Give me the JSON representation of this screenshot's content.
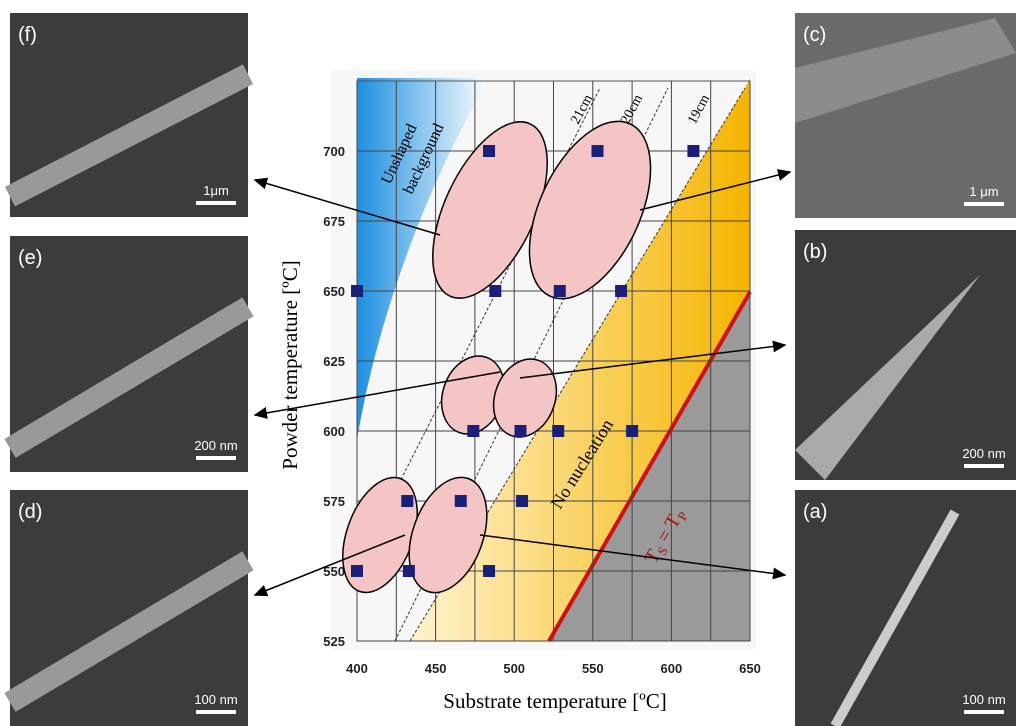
{
  "chart_data": {
    "type": "scatter",
    "x_label": "Substrate temperature [ºC]",
    "y_label": "Powder temperature [ºC]",
    "xlim": [
      400,
      650
    ],
    "ylim": [
      525,
      725
    ],
    "xticks": [
      400,
      450,
      500,
      550,
      600,
      650
    ],
    "xgrid_minor": [
      425,
      475,
      525,
      575,
      625
    ],
    "yticks": [
      525,
      550,
      575,
      600,
      625,
      650,
      675,
      700
    ],
    "grid": true,
    "x": [
      400,
      484,
      553,
      614,
      488,
      529,
      568,
      474,
      504,
      528,
      575,
      432,
      466,
      505,
      400,
      433,
      484
    ],
    "values": [
      650,
      700,
      700,
      700,
      650,
      650,
      650,
      600,
      600,
      600,
      600,
      575,
      575,
      575,
      550,
      550,
      550
    ],
    "color": "#1c1f78",
    "annotations": {
      "unshaped": [
        "Unshaped",
        "background"
      ],
      "no_nucleation": "No nucleation",
      "distances": [
        "21cm",
        "20cm",
        "19cm"
      ],
      "ts_tp": [
        "T",
        "S",
        " = T",
        "P"
      ]
    }
  },
  "panels": [
    {
      "label": "(f)",
      "scale": "1μm"
    },
    {
      "label": "(e)",
      "scale": "200 nm"
    },
    {
      "label": "(d)",
      "scale": "100 nm"
    },
    {
      "label": "(c)",
      "scale": "1 μm"
    },
    {
      "label": "(b)",
      "scale": "200 nm"
    },
    {
      "label": "(a)",
      "scale": "100 nm"
    }
  ]
}
